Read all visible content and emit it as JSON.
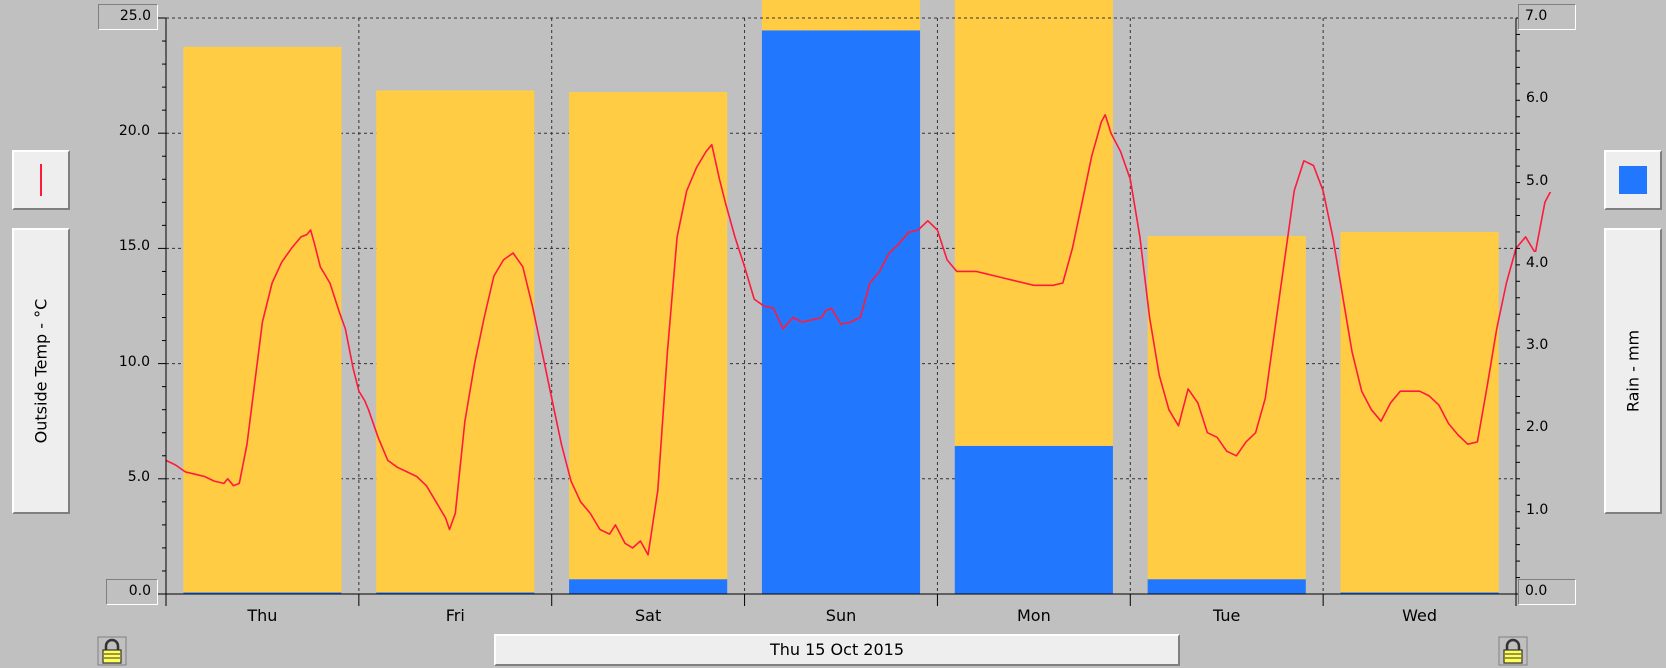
{
  "left_axis": {
    "label": "Outside Temp - °C",
    "max_label": "25.0",
    "min_label": "0.0",
    "tick_labels": [
      "20.0",
      "15.0",
      "10.0",
      "5.0"
    ]
  },
  "right_axis": {
    "label": "Rain - mm",
    "max_label": "7.0",
    "min_label": "0.0",
    "tick_labels": [
      "6.0",
      "5.0",
      "4.0",
      "3.0",
      "2.0",
      "1.0"
    ]
  },
  "date_label": "Thu 15 Oct 2015",
  "colors": {
    "background": "#c0c0c0",
    "temp_line": "#ff1a3c",
    "bar_yellow": "#ffcc44",
    "bar_blue": "#2277ff"
  },
  "icons": {
    "left_legend": "red-line-legend-icon",
    "right_legend": "blue-square-legend-icon",
    "left_lock": "padlock-icon",
    "right_lock": "padlock-icon"
  },
  "chart_data": {
    "type": "bar",
    "categories": [
      "Thu",
      "Fri",
      "Sat",
      "Sun",
      "Mon",
      "Tue",
      "Wed"
    ],
    "left_ylim": [
      0,
      25
    ],
    "right_ylim": [
      0,
      7
    ],
    "left_ticks": [
      0,
      5,
      10,
      15,
      20,
      25
    ],
    "right_ticks": [
      0,
      1,
      2,
      3,
      4,
      5,
      6,
      7
    ],
    "grid": true,
    "series": [
      {
        "name": "Outside Temp - °C",
        "type": "line",
        "axis": "left",
        "x_unit": "days since Thu 00:00",
        "points": [
          [
            0.0,
            5.8
          ],
          [
            0.05,
            5.6
          ],
          [
            0.1,
            5.3
          ],
          [
            0.15,
            5.2
          ],
          [
            0.2,
            5.1
          ],
          [
            0.25,
            4.9
          ],
          [
            0.3,
            4.8
          ],
          [
            0.32,
            5.0
          ],
          [
            0.35,
            4.7
          ],
          [
            0.38,
            4.8
          ],
          [
            0.42,
            6.5
          ],
          [
            0.45,
            8.5
          ],
          [
            0.5,
            11.8
          ],
          [
            0.55,
            13.5
          ],
          [
            0.6,
            14.4
          ],
          [
            0.65,
            15.0
          ],
          [
            0.7,
            15.5
          ],
          [
            0.73,
            15.6
          ],
          [
            0.75,
            15.8
          ],
          [
            0.77,
            15.2
          ],
          [
            0.8,
            14.2
          ],
          [
            0.85,
            13.5
          ],
          [
            0.9,
            12.2
          ],
          [
            0.93,
            11.5
          ],
          [
            0.97,
            9.8
          ],
          [
            1.0,
            8.8
          ],
          [
            1.03,
            8.4
          ],
          [
            1.05,
            8.0
          ],
          [
            1.1,
            6.8
          ],
          [
            1.15,
            5.8
          ],
          [
            1.2,
            5.5
          ],
          [
            1.25,
            5.3
          ],
          [
            1.3,
            5.1
          ],
          [
            1.35,
            4.7
          ],
          [
            1.4,
            4.0
          ],
          [
            1.45,
            3.3
          ],
          [
            1.47,
            2.8
          ],
          [
            1.5,
            3.5
          ],
          [
            1.55,
            7.5
          ],
          [
            1.6,
            10.0
          ],
          [
            1.65,
            12.0
          ],
          [
            1.7,
            13.8
          ],
          [
            1.75,
            14.5
          ],
          [
            1.8,
            14.8
          ],
          [
            1.85,
            14.2
          ],
          [
            1.9,
            12.5
          ],
          [
            1.95,
            10.5
          ],
          [
            2.0,
            8.5
          ],
          [
            2.05,
            6.5
          ],
          [
            2.1,
            4.9
          ],
          [
            2.15,
            4.0
          ],
          [
            2.2,
            3.5
          ],
          [
            2.25,
            2.8
          ],
          [
            2.3,
            2.6
          ],
          [
            2.33,
            3.0
          ],
          [
            2.38,
            2.2
          ],
          [
            2.42,
            2.0
          ],
          [
            2.46,
            2.3
          ],
          [
            2.5,
            1.7
          ],
          [
            2.55,
            4.5
          ],
          [
            2.6,
            10.5
          ],
          [
            2.65,
            15.5
          ],
          [
            2.7,
            17.5
          ],
          [
            2.75,
            18.5
          ],
          [
            2.8,
            19.2
          ],
          [
            2.83,
            19.5
          ],
          [
            2.87,
            18.0
          ],
          [
            2.9,
            17.0
          ],
          [
            2.95,
            15.5
          ],
          [
            3.0,
            14.2
          ],
          [
            3.05,
            12.8
          ],
          [
            3.1,
            12.5
          ],
          [
            3.15,
            12.4
          ],
          [
            3.2,
            11.5
          ],
          [
            3.25,
            12.0
          ],
          [
            3.3,
            11.8
          ],
          [
            3.35,
            11.9
          ],
          [
            3.4,
            12.0
          ],
          [
            3.42,
            12.3
          ],
          [
            3.45,
            12.4
          ],
          [
            3.5,
            11.7
          ],
          [
            3.55,
            11.8
          ],
          [
            3.6,
            12.0
          ],
          [
            3.65,
            13.5
          ],
          [
            3.7,
            14.0
          ],
          [
            3.75,
            14.8
          ],
          [
            3.8,
            15.2
          ],
          [
            3.85,
            15.7
          ],
          [
            3.9,
            15.8
          ],
          [
            3.95,
            16.2
          ],
          [
            4.0,
            15.8
          ],
          [
            4.05,
            14.5
          ],
          [
            4.1,
            14.0
          ],
          [
            4.15,
            14.0
          ],
          [
            4.2,
            14.0
          ],
          [
            4.25,
            13.9
          ],
          [
            4.3,
            13.8
          ],
          [
            4.35,
            13.7
          ],
          [
            4.4,
            13.6
          ],
          [
            4.5,
            13.4
          ],
          [
            4.6,
            13.4
          ],
          [
            4.65,
            13.5
          ],
          [
            4.7,
            15.0
          ],
          [
            4.75,
            17.0
          ],
          [
            4.8,
            19.0
          ],
          [
            4.85,
            20.5
          ],
          [
            4.87,
            20.8
          ],
          [
            4.9,
            20.0
          ],
          [
            4.95,
            19.2
          ],
          [
            5.0,
            18.0
          ],
          [
            5.05,
            15.5
          ],
          [
            5.1,
            12.0
          ],
          [
            5.15,
            9.5
          ],
          [
            5.2,
            8.0
          ],
          [
            5.25,
            7.3
          ],
          [
            5.3,
            8.9
          ],
          [
            5.35,
            8.3
          ],
          [
            5.4,
            7.0
          ],
          [
            5.45,
            6.8
          ],
          [
            5.5,
            6.2
          ],
          [
            5.55,
            6.0
          ],
          [
            5.6,
            6.6
          ],
          [
            5.65,
            7.0
          ],
          [
            5.7,
            8.5
          ],
          [
            5.75,
            11.5
          ],
          [
            5.8,
            14.5
          ],
          [
            5.85,
            17.5
          ],
          [
            5.9,
            18.8
          ],
          [
            5.95,
            18.6
          ],
          [
            6.0,
            17.5
          ],
          [
            6.05,
            15.5
          ],
          [
            6.1,
            13.0
          ],
          [
            6.15,
            10.5
          ],
          [
            6.2,
            8.8
          ],
          [
            6.25,
            8.0
          ],
          [
            6.3,
            7.5
          ],
          [
            6.35,
            8.3
          ],
          [
            6.4,
            8.8
          ],
          [
            6.45,
            8.8
          ],
          [
            6.5,
            8.8
          ],
          [
            6.55,
            8.6
          ],
          [
            6.6,
            8.2
          ],
          [
            6.65,
            7.4
          ],
          [
            6.7,
            6.9
          ],
          [
            6.75,
            6.5
          ],
          [
            6.8,
            6.6
          ],
          [
            6.85,
            9.0
          ],
          [
            6.9,
            11.5
          ],
          [
            6.95,
            13.5
          ],
          [
            7.0,
            15.0
          ],
          [
            7.05,
            15.5
          ],
          [
            7.1,
            14.8
          ],
          [
            7.15,
            17.0
          ],
          [
            7.2,
            17.8
          ],
          [
            7.25,
            17.9
          ],
          [
            7.3,
            17.6
          ]
        ]
      },
      {
        "name": "Rain - mm",
        "type": "bar",
        "axis": "right",
        "values": [
          0.02,
          0.02,
          0.18,
          6.85,
          1.8,
          0.18,
          0.02
        ]
      },
      {
        "name": "yellow",
        "type": "bar",
        "axis": "right",
        "values": [
          6.63,
          6.1,
          5.92,
          1.12,
          5.74,
          4.17,
          4.38
        ]
      }
    ]
  }
}
